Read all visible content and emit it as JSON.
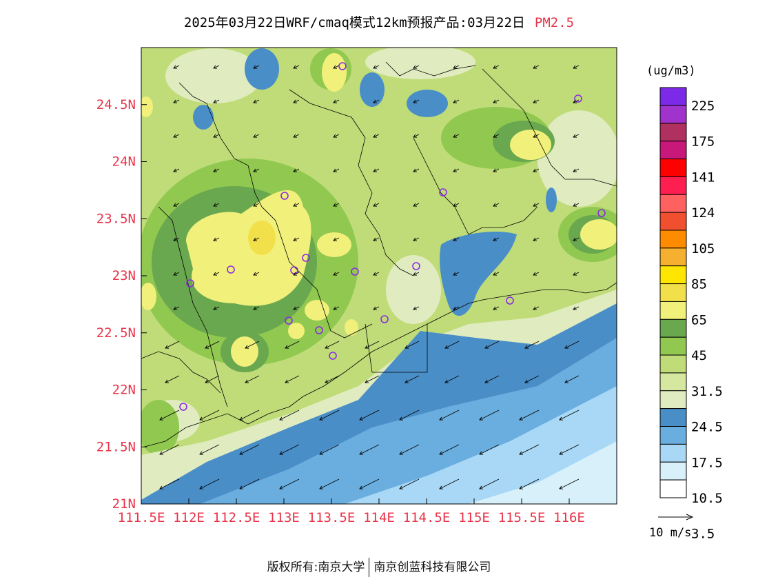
{
  "header": {
    "title": "2025年03月22日WRF/cmaq模式12km预报产品:03月22日",
    "pollutant": "PM2.5"
  },
  "map": {
    "lat_labels": [
      "21N",
      "21.5N",
      "22N",
      "22.5N",
      "23N",
      "23.5N",
      "24N",
      "24.5N"
    ],
    "lon_labels": [
      "111.5E",
      "112E",
      "112.5E",
      "113E",
      "113.5E",
      "114E",
      "114.5E",
      "115E",
      "115.5E",
      "116E"
    ],
    "lon_range": [
      111.5,
      116.5
    ],
    "lat_range": [
      21.0,
      25.0
    ],
    "colors": {
      "axis_labels": "#e8344a",
      "station_marker": "#8a2be2",
      "boundary": "#000000"
    }
  },
  "legend": {
    "unit": "(ug/m3)",
    "levels": [
      "225",
      "175",
      "141",
      "124",
      "105",
      "85",
      "65",
      "45",
      "31.5",
      "24.5",
      "17.5",
      "10.5",
      "3.5"
    ],
    "colors": [
      "#7d2ae8",
      "#a033cc",
      "#b03060",
      "#c8187a",
      "#ff0000",
      "#ff1e50",
      "#ff6060",
      "#f05030",
      "#ff8c00",
      "#f5b030",
      "#ffe600",
      "#f2e04a",
      "#f0f07a",
      "#6aa84f",
      "#90c850",
      "#c0dc78",
      "#d6e8a0",
      "#e0ecc0",
      "#4a8ec8",
      "#6aaee0",
      "#a8d8f5",
      "#d8f0fa",
      "#ffffff"
    ]
  },
  "wind_key": {
    "label": "10 m/s"
  },
  "footer": {
    "copyright": "版权所有:南京大学",
    "company": "南京创蓝科技有限公司"
  }
}
